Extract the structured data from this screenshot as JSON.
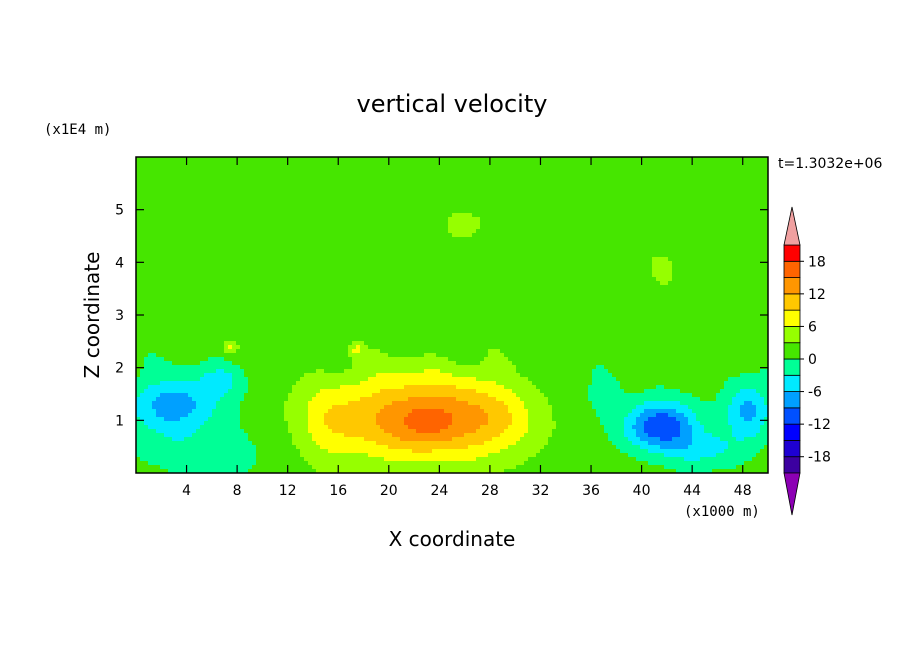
{
  "chart_data": {
    "type": "heatmap",
    "title": "vertical velocity",
    "xlabel": "X coordinate",
    "ylabel": "Z coordinate",
    "x_unit": "(x1000 m)",
    "y_unit": "(x1E4 m)",
    "time_label": "t=1.3032e+06",
    "xlim": [
      0,
      50
    ],
    "ylim": [
      0,
      6
    ],
    "x_ticks": [
      4,
      8,
      12,
      16,
      20,
      24,
      28,
      32,
      36,
      40,
      44,
      48
    ],
    "y_ticks": [
      1,
      2,
      3,
      4,
      5
    ],
    "colorbar": {
      "levels": [
        -21,
        -18,
        -15,
        -12,
        -9,
        -6,
        -3,
        0,
        3,
        6,
        9,
        12,
        15,
        18,
        21
      ],
      "tick_labels": [
        "18",
        "12",
        "6",
        "0",
        "-6",
        "-12",
        "-18"
      ],
      "tick_values": [
        18,
        12,
        6,
        0,
        -6,
        -12,
        -18
      ],
      "colors": [
        "#3c00a0",
        "#1e00d2",
        "#0000ff",
        "#0050ff",
        "#00a0ff",
        "#00eaff",
        "#00ff96",
        "#46e600",
        "#96ff00",
        "#ffff00",
        "#ffc800",
        "#ff9600",
        "#ff6400",
        "#ff0000"
      ],
      "under_color": "#8c00b4",
      "over_color": "#f0a0a0"
    },
    "features": [
      {
        "x": 22.5,
        "z": 1.05,
        "sx": 7.5,
        "sz": 0.85,
        "amp": 13
      },
      {
        "x": 28.0,
        "z": 1.0,
        "sx": 3.0,
        "sz": 0.7,
        "amp": 3
      },
      {
        "x": 23.0,
        "z": 0.95,
        "sx": 2.0,
        "sz": 0.35,
        "amp": 3
      },
      {
        "x": 15.0,
        "z": 0.9,
        "sx": 2.5,
        "sz": 0.8,
        "amp": 3
      },
      {
        "x": 3.0,
        "z": 1.3,
        "sx": 3.5,
        "sz": 0.5,
        "amp": -9
      },
      {
        "x": 7.0,
        "z": 1.8,
        "sx": 2.0,
        "sz": 0.35,
        "amp": -4
      },
      {
        "x": 41.5,
        "z": 0.9,
        "sx": 2.8,
        "sz": 0.45,
        "amp": -13
      },
      {
        "x": 48.5,
        "z": 1.2,
        "sx": 1.8,
        "sz": 0.55,
        "amp": -8
      },
      {
        "x": 45.0,
        "z": 0.45,
        "sx": 3.0,
        "sz": 0.35,
        "amp": -5
      },
      {
        "x": 5.0,
        "z": 0.45,
        "sx": 6.0,
        "sz": 0.5,
        "amp": -3
      },
      {
        "x": 37.0,
        "z": 1.5,
        "sx": 1.5,
        "sz": 0.4,
        "amp": -3
      },
      {
        "x": 26.0,
        "z": 4.7,
        "sx": 2.5,
        "sz": 0.3,
        "amp": 3
      },
      {
        "x": 7.5,
        "z": 2.4,
        "sx": 0.6,
        "sz": 0.12,
        "amp": 5
      },
      {
        "x": 17.5,
        "z": 2.35,
        "sx": 0.5,
        "sz": 0.12,
        "amp": 5
      },
      {
        "x": 42.0,
        "z": 4.0,
        "sx": 2.0,
        "sz": 0.4,
        "amp": 2
      }
    ]
  }
}
